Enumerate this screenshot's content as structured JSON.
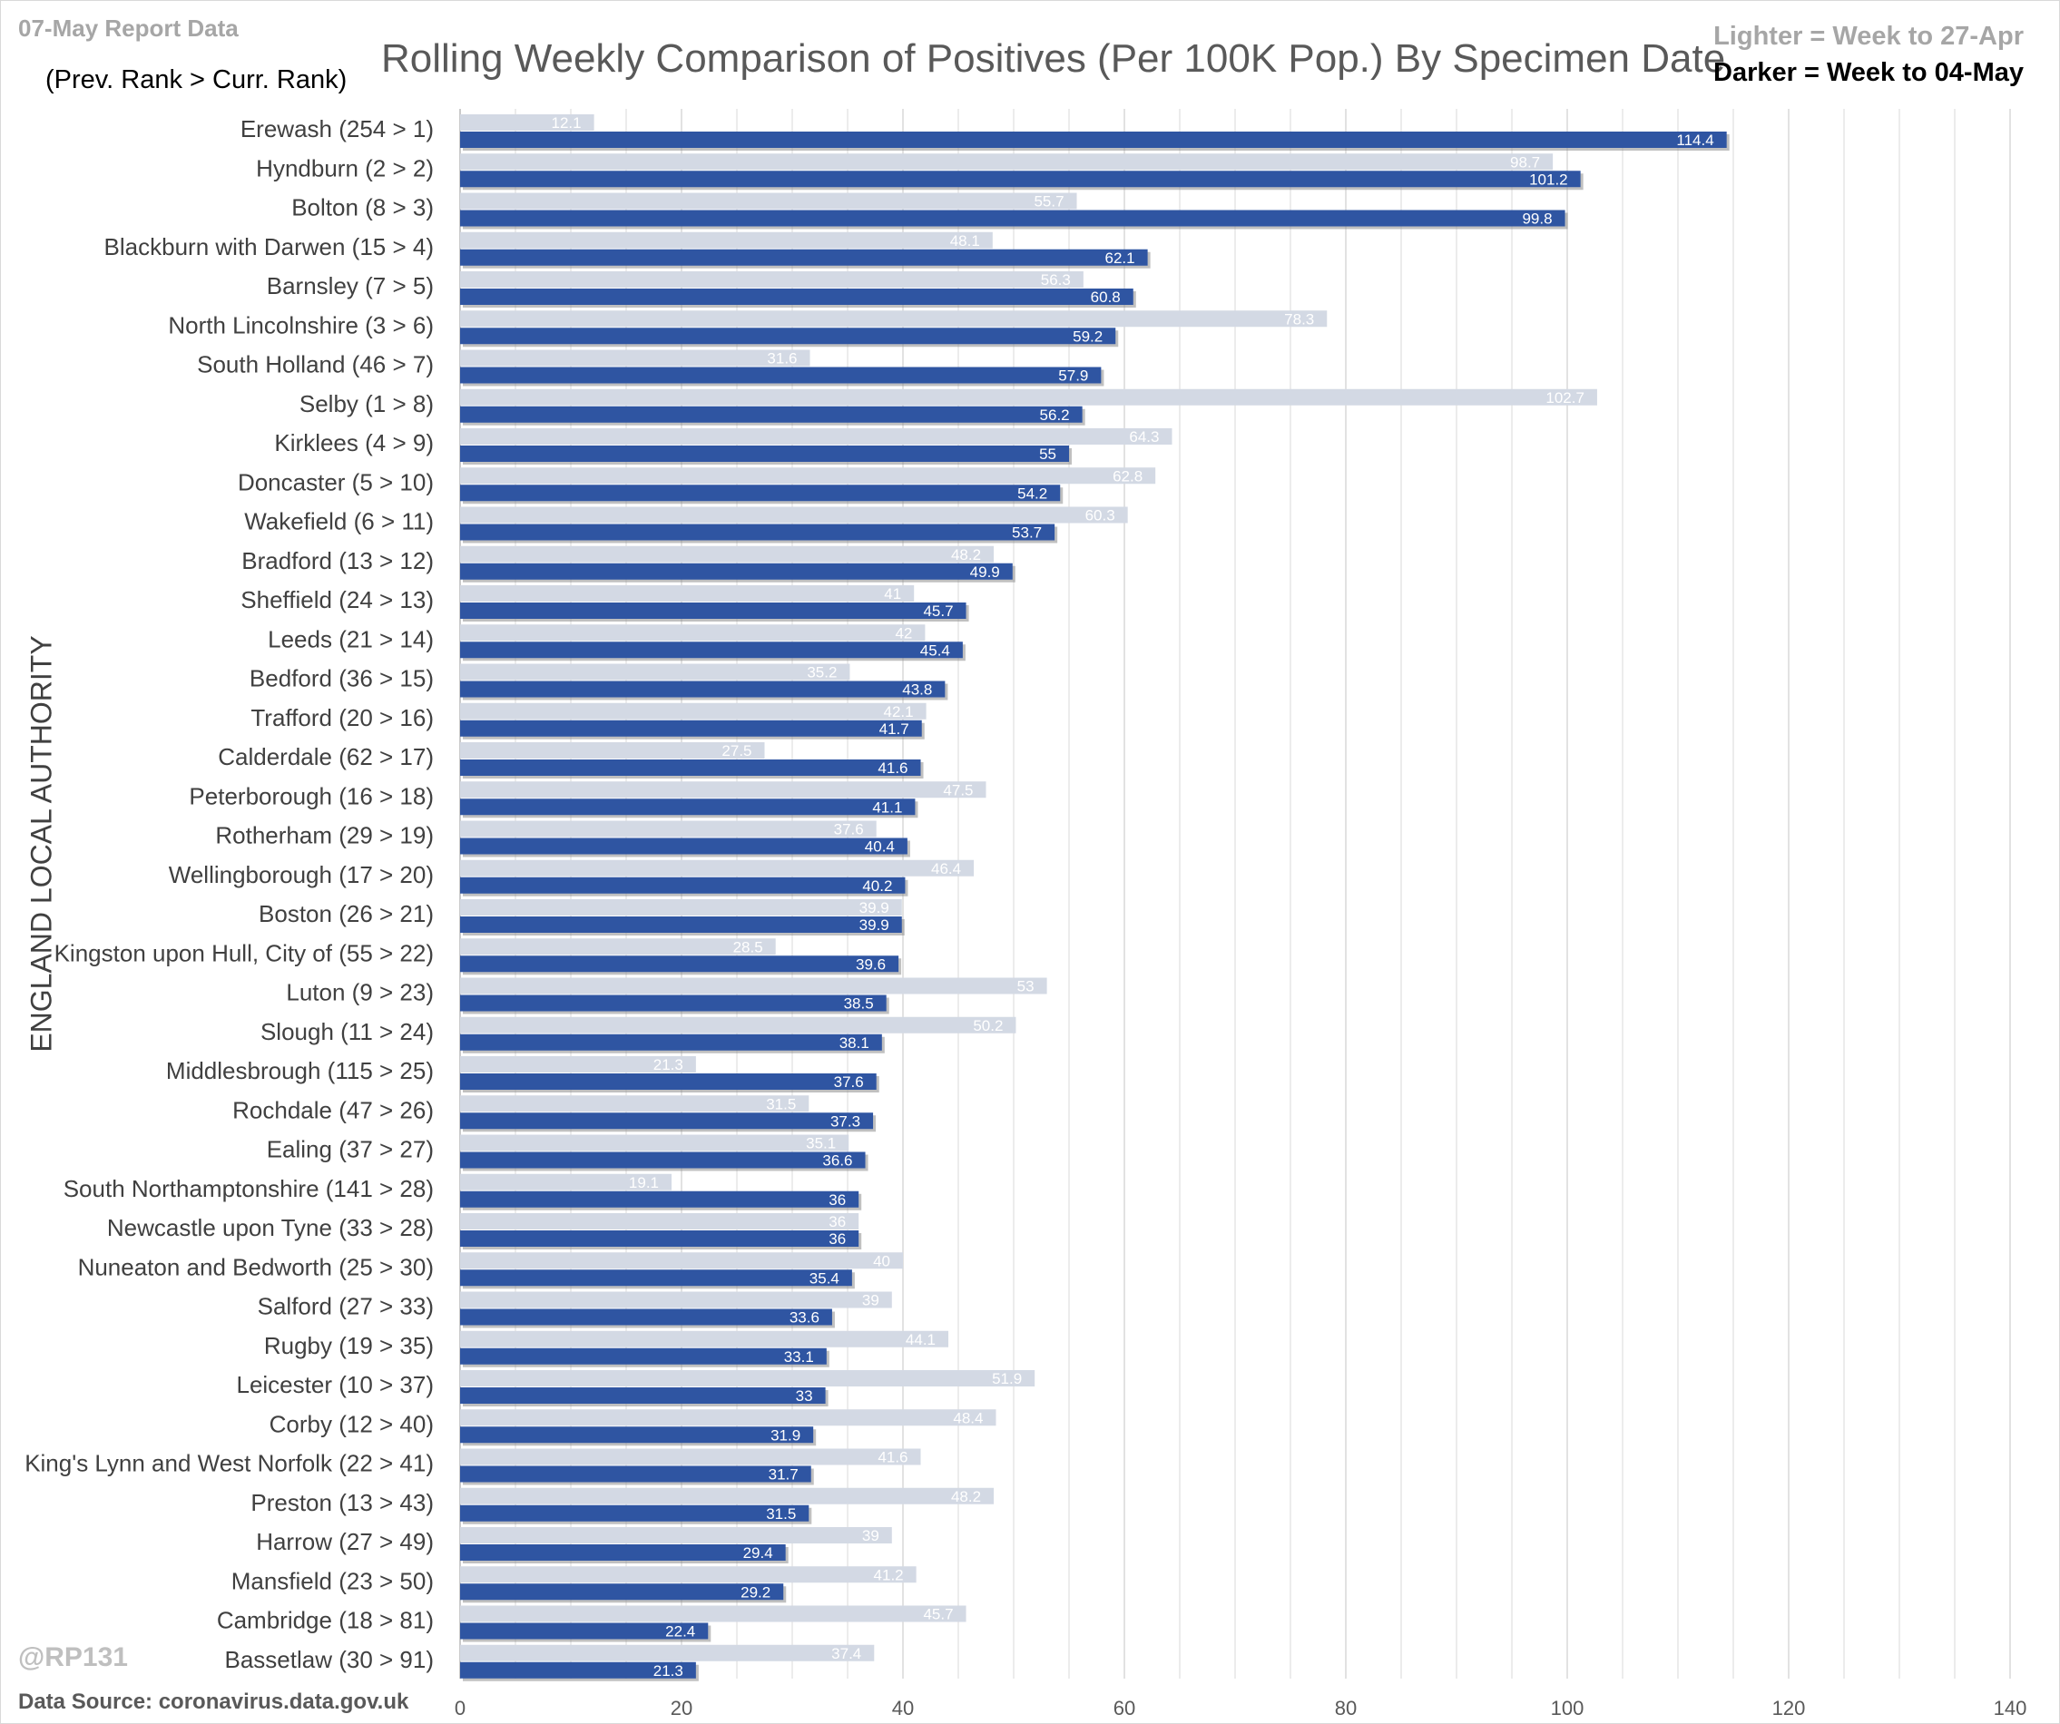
{
  "header": {
    "report_label": "07-May Report Data",
    "rank_note": "(Prev. Rank > Curr. Rank)",
    "title": "Rolling Weekly Comparison of Positives  (Per 100K Pop.) By Specimen Date",
    "legend_lighter": "Lighter =  Week to 27-Apr",
    "legend_darker": "Darker =  Week to 04-May"
  },
  "footer": {
    "watermark": "@RP131",
    "source": "Data Source: coronavirus.data.gov.uk"
  },
  "colors": {
    "lighter": "#d3d9e4",
    "darker": "#2f55a2",
    "grid": "#d9d9d9",
    "axis_text": "#595959",
    "category_text": "#404040"
  },
  "chart_data": {
    "type": "bar",
    "orientation": "horizontal",
    "ylabel": "ENGLAND LOCAL AUTHORITY",
    "xlim": [
      0,
      140
    ],
    "x_ticks": [
      0,
      20,
      40,
      60,
      80,
      100,
      120,
      140
    ],
    "grid": true,
    "legend_position": "top-right",
    "categories": [
      "Erewash (254 > 1)",
      "Hyndburn (2 > 2)",
      "Bolton (8 > 3)",
      "Blackburn with Darwen (15 > 4)",
      "Barnsley (7 > 5)",
      "North Lincolnshire (3 > 6)",
      "South Holland (46 > 7)",
      "Selby (1 > 8)",
      "Kirklees (4 > 9)",
      "Doncaster (5 > 10)",
      "Wakefield (6 > 11)",
      "Bradford (13 > 12)",
      "Sheffield (24 > 13)",
      "Leeds (21 > 14)",
      "Bedford (36 > 15)",
      "Trafford (20 > 16)",
      "Calderdale (62 > 17)",
      "Peterborough (16 > 18)",
      "Rotherham (29 > 19)",
      "Wellingborough (17 > 20)",
      "Boston (26 > 21)",
      "Kingston upon Hull, City of (55 > 22)",
      "Luton (9 > 23)",
      "Slough (11 > 24)",
      "Middlesbrough (115 > 25)",
      "Rochdale (47 > 26)",
      "Ealing (37 > 27)",
      "South Northamptonshire (141 > 28)",
      "Newcastle upon Tyne (33 > 28)",
      "Nuneaton and Bedworth (25 > 30)",
      "Salford (27 > 33)",
      "Rugby (19 > 35)",
      "Leicester (10 > 37)",
      "Corby (12 > 40)",
      "King's Lynn and West Norfolk (22 > 41)",
      "Preston (13 > 43)",
      "Harrow (27 > 49)",
      "Mansfield (23 > 50)",
      "Cambridge (18 > 81)",
      "Bassetlaw (30 > 91)"
    ],
    "series": [
      {
        "name": "Lighter =  Week to 27-Apr",
        "values": [
          12.1,
          98.7,
          55.7,
          48.1,
          56.3,
          78.3,
          31.6,
          102.7,
          64.3,
          62.8,
          60.3,
          48.2,
          41,
          42,
          35.2,
          42.1,
          27.5,
          47.5,
          37.6,
          46.4,
          39.9,
          28.5,
          53,
          50.2,
          21.3,
          31.5,
          35.1,
          19.1,
          36,
          40,
          39,
          44.1,
          51.9,
          48.4,
          41.6,
          48.2,
          39,
          41.2,
          45.7,
          37.4
        ]
      },
      {
        "name": "Darker =  Week to 04-May",
        "values": [
          114.4,
          101.2,
          99.8,
          62.1,
          60.8,
          59.2,
          57.9,
          56.2,
          55,
          54.2,
          53.7,
          49.9,
          45.7,
          45.4,
          43.8,
          41.7,
          41.6,
          41.1,
          40.4,
          40.2,
          39.9,
          39.6,
          38.5,
          38.1,
          37.6,
          37.3,
          36.6,
          36,
          36,
          35.4,
          33.6,
          33.1,
          33,
          31.9,
          31.7,
          31.5,
          29.4,
          29.2,
          22.4,
          21.3
        ]
      }
    ]
  }
}
